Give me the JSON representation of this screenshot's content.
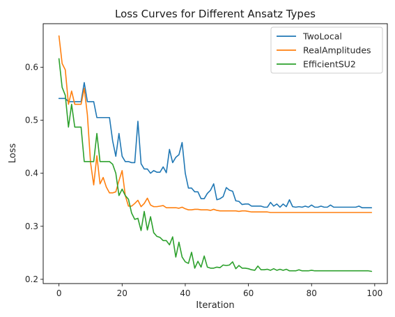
{
  "chart_data": {
    "type": "line",
    "title": "Loss Curves for Different Ansatz Types",
    "xlabel": "Iteration",
    "ylabel": "Loss",
    "xlim": [
      -5,
      104
    ],
    "ylim": [
      0.192,
      0.682
    ],
    "xticks": [
      0,
      20,
      40,
      60,
      80,
      100
    ],
    "yticks": [
      0.2,
      0.3,
      0.4,
      0.5,
      0.6
    ],
    "grid": false,
    "legend": "top-right",
    "series": [
      {
        "name": "TwoLocal",
        "color": "#1f77b4",
        "values": [
          0.541,
          0.541,
          0.541,
          0.535,
          0.535,
          0.535,
          0.535,
          0.535,
          0.571,
          0.535,
          0.535,
          0.535,
          0.505,
          0.505,
          0.505,
          0.505,
          0.505,
          0.461,
          0.432,
          0.475,
          0.432,
          0.422,
          0.422,
          0.42,
          0.42,
          0.498,
          0.418,
          0.408,
          0.408,
          0.4,
          0.405,
          0.402,
          0.402,
          0.412,
          0.401,
          0.445,
          0.42,
          0.43,
          0.435,
          0.458,
          0.4,
          0.372,
          0.372,
          0.365,
          0.365,
          0.352,
          0.352,
          0.362,
          0.368,
          0.38,
          0.35,
          0.352,
          0.356,
          0.373,
          0.368,
          0.366,
          0.348,
          0.347,
          0.341,
          0.342,
          0.342,
          0.338,
          0.338,
          0.338,
          0.338,
          0.336,
          0.336,
          0.345,
          0.338,
          0.342,
          0.336,
          0.342,
          0.337,
          0.35,
          0.337,
          0.336,
          0.337,
          0.336,
          0.338,
          0.336,
          0.34,
          0.336,
          0.336,
          0.338,
          0.336,
          0.336,
          0.34,
          0.336,
          0.336,
          0.336,
          0.336,
          0.336,
          0.336,
          0.336,
          0.336,
          0.338,
          0.335,
          0.335,
          0.335,
          0.335
        ]
      },
      {
        "name": "RealAmplitudes",
        "color": "#ff7f0e",
        "values": [
          0.659,
          0.607,
          0.595,
          0.53,
          0.555,
          0.53,
          0.53,
          0.53,
          0.56,
          0.51,
          0.42,
          0.378,
          0.433,
          0.38,
          0.392,
          0.374,
          0.363,
          0.363,
          0.365,
          0.386,
          0.405,
          0.358,
          0.338,
          0.338,
          0.343,
          0.349,
          0.337,
          0.343,
          0.353,
          0.34,
          0.337,
          0.337,
          0.338,
          0.339,
          0.335,
          0.335,
          0.335,
          0.335,
          0.334,
          0.336,
          0.333,
          0.331,
          0.331,
          0.332,
          0.332,
          0.331,
          0.331,
          0.331,
          0.33,
          0.332,
          0.33,
          0.329,
          0.329,
          0.329,
          0.329,
          0.329,
          0.329,
          0.328,
          0.329,
          0.329,
          0.328,
          0.327,
          0.327,
          0.327,
          0.327,
          0.327,
          0.327,
          0.326,
          0.326,
          0.326,
          0.326,
          0.326,
          0.326,
          0.326,
          0.326,
          0.326,
          0.326,
          0.326,
          0.326,
          0.326,
          0.326,
          0.326,
          0.326,
          0.326,
          0.326,
          0.326,
          0.326,
          0.326,
          0.326,
          0.326,
          0.326,
          0.326,
          0.326,
          0.326,
          0.326,
          0.326,
          0.326,
          0.326,
          0.326,
          0.326
        ]
      },
      {
        "name": "EfficientSU2",
        "color": "#2ca02c",
        "values": [
          0.616,
          0.562,
          0.547,
          0.487,
          0.53,
          0.487,
          0.487,
          0.487,
          0.422,
          0.422,
          0.422,
          0.422,
          0.475,
          0.422,
          0.422,
          0.422,
          0.422,
          0.417,
          0.4,
          0.358,
          0.37,
          0.358,
          0.351,
          0.325,
          0.313,
          0.315,
          0.292,
          0.328,
          0.293,
          0.318,
          0.288,
          0.281,
          0.279,
          0.273,
          0.273,
          0.265,
          0.28,
          0.242,
          0.27,
          0.242,
          0.233,
          0.23,
          0.251,
          0.221,
          0.234,
          0.223,
          0.244,
          0.223,
          0.221,
          0.221,
          0.223,
          0.222,
          0.227,
          0.226,
          0.227,
          0.233,
          0.22,
          0.226,
          0.221,
          0.221,
          0.22,
          0.218,
          0.217,
          0.225,
          0.218,
          0.218,
          0.219,
          0.217,
          0.22,
          0.217,
          0.219,
          0.217,
          0.219,
          0.216,
          0.216,
          0.216,
          0.218,
          0.216,
          0.216,
          0.216,
          0.217,
          0.216,
          0.216,
          0.216,
          0.216,
          0.216,
          0.216,
          0.216,
          0.216,
          0.216,
          0.216,
          0.216,
          0.216,
          0.216,
          0.216,
          0.216,
          0.216,
          0.216,
          0.216,
          0.215
        ]
      }
    ]
  }
}
